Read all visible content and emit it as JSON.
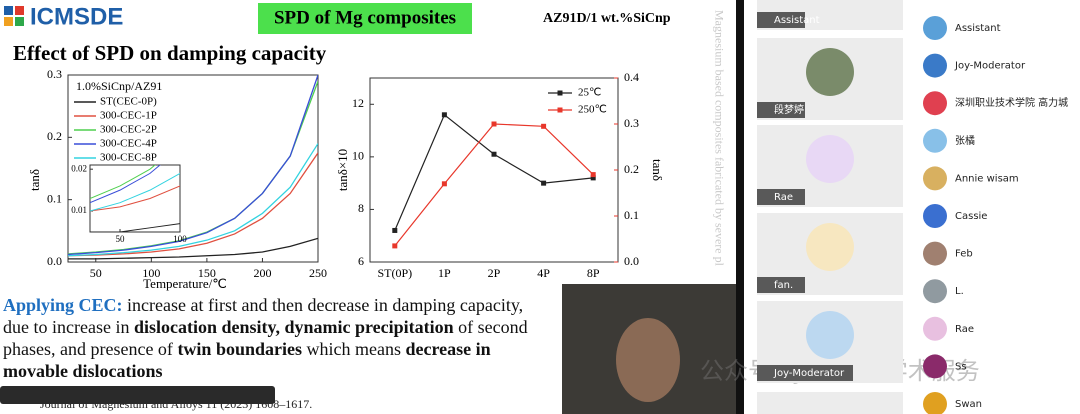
{
  "slide": {
    "logo": "ICMSDE",
    "header": "SPD of Mg composites",
    "material": "AZ91D/1 wt.%SiCnp",
    "title": "Effect of SPD on damping capacity",
    "side_note": "Magnesium based composites fabricated by severe pl",
    "paragraph": [
      {
        "text": "Applying CEC:",
        "bold": true,
        "color": "#1f6fc0"
      },
      {
        "text": " increase at first and then decrease in damping capacity, due to increase in ",
        "bold": false
      },
      {
        "text": "dislocation density, dynamic precipitation",
        "bold": true
      },
      {
        "text": " of second phases, and presence of ",
        "bold": false
      },
      {
        "text": "twin boundaries",
        "bold": true
      },
      {
        "text": " which means ",
        "bold": false
      },
      {
        "text": "decrease in movable dislocations",
        "bold": true
      }
    ],
    "citation": "Journal of Magnesium and Alloys 11 (2023) 1608–1617."
  },
  "chart_data": [
    {
      "type": "line",
      "annotation": "1.0%SiCnp/AZ91",
      "x_label": "Temperature/℃",
      "y_label": "tanδ",
      "x": [
        25,
        50,
        75,
        100,
        125,
        150,
        175,
        200,
        225,
        250
      ],
      "series": [
        {
          "name": "ST(CEC-0P)",
          "color": "#222222",
          "values": [
            0.005,
            0.005,
            0.006,
            0.007,
            0.008,
            0.01,
            0.012,
            0.016,
            0.025,
            0.038
          ]
        },
        {
          "name": "300-CEC-1P",
          "color": "#e05040",
          "values": [
            0.01,
            0.011,
            0.013,
            0.016,
            0.021,
            0.03,
            0.045,
            0.07,
            0.11,
            0.175
          ]
        },
        {
          "name": "300-CEC-2P",
          "color": "#4fcf4f",
          "values": [
            0.013,
            0.016,
            0.02,
            0.026,
            0.034,
            0.048,
            0.07,
            0.11,
            0.17,
            0.29
          ]
        },
        {
          "name": "300-CEC-4P",
          "color": "#3a4ed8",
          "values": [
            0.012,
            0.015,
            0.019,
            0.025,
            0.033,
            0.047,
            0.07,
            0.11,
            0.17,
            0.3
          ]
        },
        {
          "name": "300-CEC-8P",
          "color": "#33d3e0",
          "values": [
            0.01,
            0.012,
            0.015,
            0.019,
            0.025,
            0.035,
            0.05,
            0.078,
            0.12,
            0.19
          ]
        }
      ],
      "xlim": [
        25,
        250
      ],
      "xticks": [
        50,
        100,
        150,
        200,
        250
      ],
      "ylim": [
        0,
        0.3
      ],
      "yticks": [
        {
          "value": 0,
          "label": "0.0"
        },
        0.1,
        0.2,
        0.3
      ],
      "inset": {
        "xlim": [
          25,
          100
        ],
        "xticks": [
          50,
          100
        ],
        "ylim": [
          0.005,
          0.021
        ],
        "yticks": [
          0.01,
          0.02
        ]
      }
    },
    {
      "type": "line",
      "y_label": "tanδ×10",
      "y2_label": "tanδ",
      "categories": [
        "ST(0P)",
        "1P",
        "2P",
        "4P",
        "8P"
      ],
      "series": [
        {
          "name": "25℃",
          "color": "#222222",
          "values": [
            7.2,
            11.6,
            10.1,
            9.0,
            9.2
          ]
        },
        {
          "name": "250℃",
          "color": "#e8372b",
          "axis": "y2",
          "values": [
            0.035,
            0.17,
            0.3,
            0.295,
            0.19
          ]
        }
      ],
      "ylim": [
        6,
        13
      ],
      "yticks": [
        6,
        8,
        10,
        12
      ],
      "y2lim": [
        0,
        0.4
      ],
      "y2ticks": [
        {
          "value": 0,
          "label": "0.0"
        },
        0.1,
        0.2,
        0.3,
        0.4
      ]
    }
  ],
  "meeting": {
    "watermark": "公众号 · JAMSET学术服务",
    "video_tiles": [
      "Assistant",
      "段梦婷",
      "Rae",
      "fan.",
      "Joy-Moderator"
    ],
    "participants": [
      "Assistant",
      "Joy-Moderator",
      "深圳职业技术学院 高力城",
      "张橘",
      "Annie wisam",
      "Cassie",
      "Feb",
      "L.",
      "Rae",
      "Ss",
      "Swan"
    ]
  }
}
